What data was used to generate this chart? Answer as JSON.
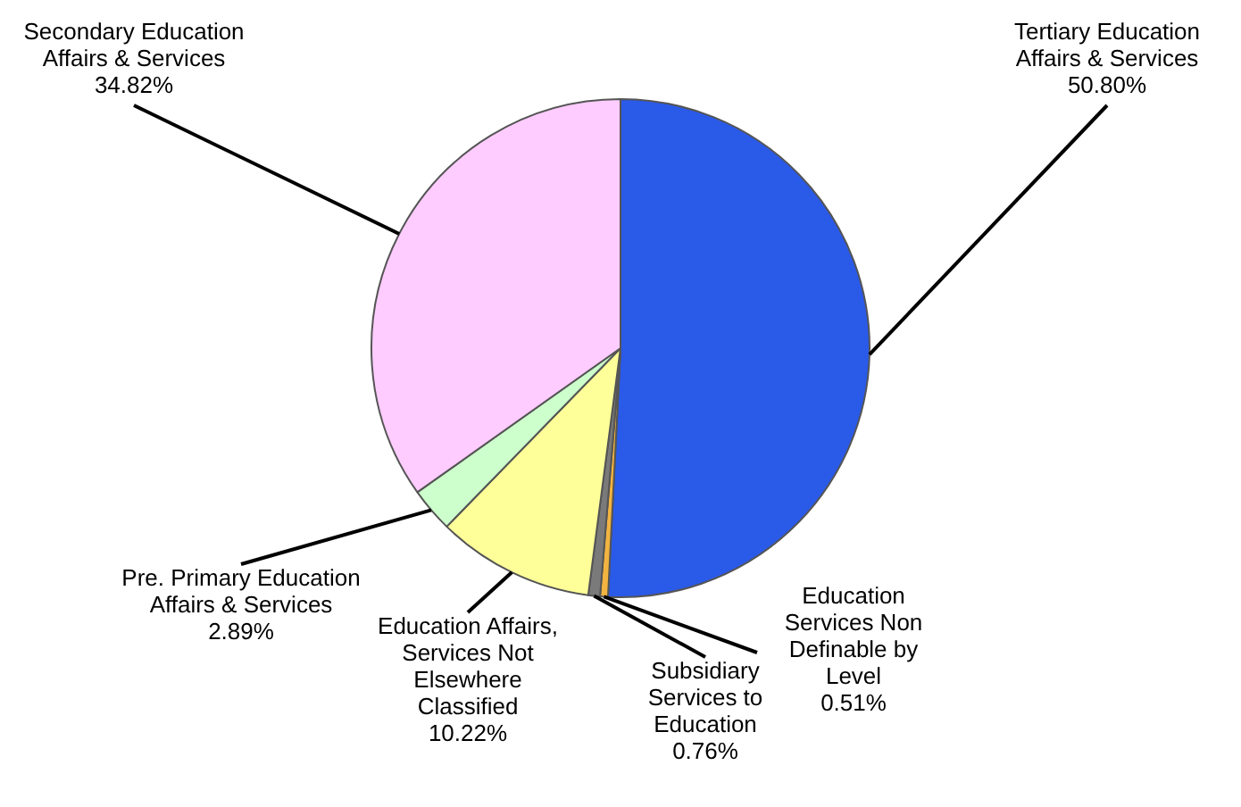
{
  "chart_data": {
    "type": "pie",
    "categories": [
      "Tertiary Education Affairs & Services",
      "Education Services Non Definable by Level",
      "Subsidiary Services to Education",
      "Education Affairs, Services Not Elsewhere Classified",
      "Pre. Primary Education Affairs & Services",
      "Secondary Education Affairs & Services"
    ],
    "values": [
      50.8,
      0.51,
      0.76,
      10.22,
      2.89,
      34.82
    ],
    "value_labels": [
      "50.80%",
      "0.51%",
      "0.76%",
      "10.22%",
      "2.89%",
      "34.82%"
    ],
    "colors": [
      "#2a5ae8",
      "#f2b441",
      "#7a7a7a",
      "#ffff99",
      "#ccffcc",
      "#ffccff"
    ],
    "legend": false
  }
}
